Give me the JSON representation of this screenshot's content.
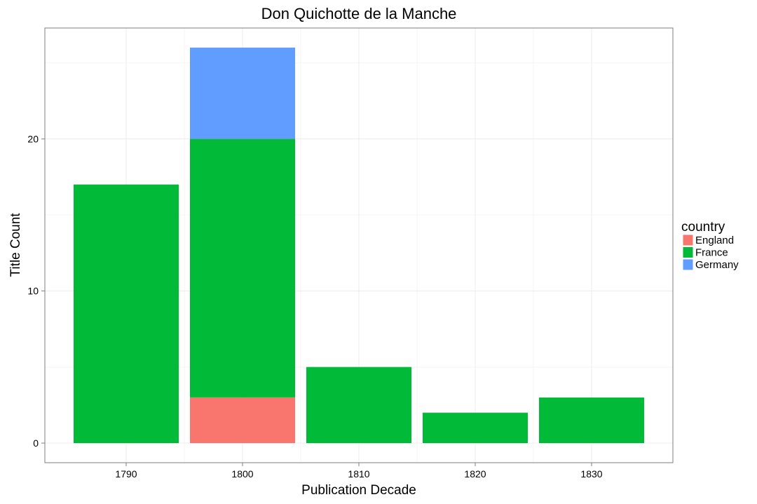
{
  "chart_data": {
    "type": "bar",
    "stacked": true,
    "title": "Don Quichotte de la Manche",
    "xlabel": "Publication Decade",
    "ylabel": "Title Count",
    "categories": [
      "1790",
      "1800",
      "1810",
      "1820",
      "1830"
    ],
    "series": [
      {
        "name": "England",
        "color": "#F8766D",
        "values": [
          0,
          3,
          0,
          0,
          0
        ]
      },
      {
        "name": "France",
        "color": "#00BA38",
        "values": [
          17,
          17,
          5,
          2,
          3
        ]
      },
      {
        "name": "Germany",
        "color": "#619CFF",
        "values": [
          0,
          6,
          0,
          0,
          0
        ]
      }
    ],
    "ylim": [
      0,
      26
    ],
    "y_ticks": [
      0,
      10,
      20
    ],
    "legend": {
      "title": "country",
      "position": "right"
    },
    "grid": true
  }
}
